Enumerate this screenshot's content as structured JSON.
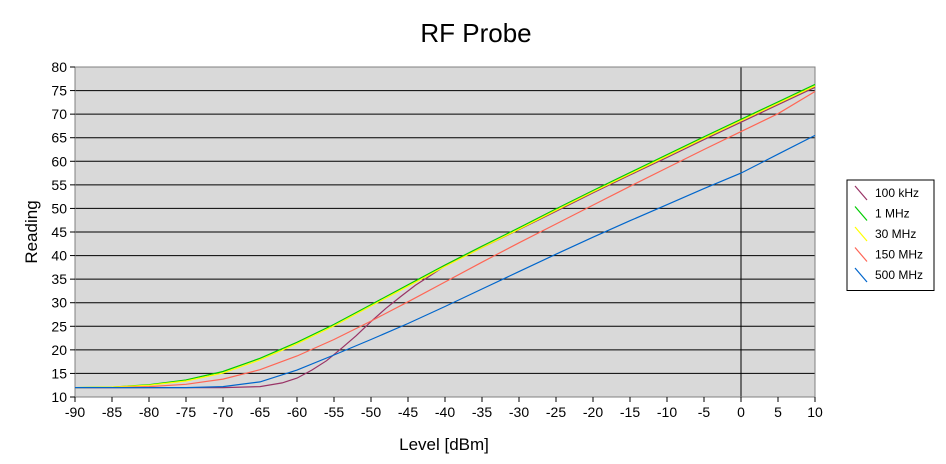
{
  "chart_data": {
    "type": "line",
    "title": "RF Probe",
    "xlabel": "Level [dBm]",
    "ylabel": "Reading",
    "xlim": [
      -90,
      10
    ],
    "ylim": [
      10,
      80
    ],
    "x_ticks": [
      -90,
      -85,
      -80,
      -75,
      -70,
      -65,
      -60,
      -55,
      -50,
      -45,
      -40,
      -35,
      -30,
      -25,
      -20,
      -15,
      -10,
      -5,
      0,
      5,
      10
    ],
    "y_ticks": [
      10,
      15,
      20,
      25,
      30,
      35,
      40,
      45,
      50,
      55,
      60,
      65,
      70,
      75,
      80
    ],
    "grid": "horizontal",
    "plot_background": "#d9d9d9",
    "legend_position": "right",
    "series": [
      {
        "name": "100 kHz",
        "color": "#993366",
        "x": [
          -90,
          -80,
          -70,
          -65,
          -62,
          -60,
          -58,
          -56,
          -54,
          -52,
          -50,
          -48,
          -46,
          -44,
          -42,
          -40,
          -35,
          -30,
          -25,
          -20,
          -15,
          -10,
          -5,
          0,
          5,
          10
        ],
        "y": [
          12,
          12,
          12,
          12.2,
          13,
          14,
          15.7,
          17.7,
          20.3,
          23,
          26,
          28.8,
          31.3,
          33.7,
          35.7,
          37.8,
          41.7,
          45.5,
          49.4,
          53.3,
          57.1,
          60.8,
          64.6,
          68.3,
          72,
          75.7
        ]
      },
      {
        "name": "1 MHz",
        "color": "#00cc00",
        "x": [
          -90,
          -85,
          -80,
          -75,
          -70,
          -65,
          -60,
          -55,
          -50,
          -45,
          -40,
          -35,
          -30,
          -25,
          -20,
          -15,
          -10,
          -5,
          0,
          5,
          10
        ],
        "y": [
          12,
          12.1,
          12.6,
          13.6,
          15.4,
          18.2,
          21.6,
          25.4,
          29.6,
          33.8,
          38,
          42,
          45.9,
          49.9,
          53.8,
          57.6,
          61.4,
          65.2,
          68.9,
          72.6,
          76.3
        ]
      },
      {
        "name": "30 MHz",
        "color": "#ffff00",
        "x": [
          -90,
          -85,
          -80,
          -75,
          -70,
          -65,
          -60,
          -55,
          -50,
          -45,
          -40,
          -35,
          -30,
          -25,
          -20,
          -15,
          -10,
          -5,
          0,
          5,
          10
        ],
        "y": [
          12,
          12.1,
          12.5,
          13.4,
          15.1,
          17.9,
          21.3,
          25.1,
          29.3,
          33.5,
          37.7,
          41.7,
          45.6,
          49.6,
          53.5,
          57.3,
          61.1,
          64.9,
          68.6,
          72.3,
          76
        ]
      },
      {
        "name": "150 MHz",
        "color": "#ff6655",
        "x": [
          -90,
          -85,
          -80,
          -75,
          -70,
          -65,
          -60,
          -55,
          -50,
          -45,
          -40,
          -35,
          -30,
          -25,
          -20,
          -15,
          -10,
          -5,
          0,
          5,
          10
        ],
        "y": [
          12,
          12,
          12.2,
          12.7,
          13.8,
          15.8,
          18.7,
          22.2,
          26.1,
          30.2,
          34.4,
          38.6,
          42.7,
          46.7,
          50.7,
          54.7,
          58.6,
          62.5,
          66.3,
          70.1,
          74.8
        ]
      },
      {
        "name": "500 MHz",
        "color": "#0066cc",
        "x": [
          -90,
          -85,
          -80,
          -75,
          -70,
          -65,
          -60,
          -55,
          -50,
          -45,
          -40,
          -35,
          -30,
          -25,
          -20,
          -15,
          -10,
          -5,
          0,
          5,
          10
        ],
        "y": [
          12,
          12,
          12,
          12,
          12.2,
          13.2,
          15.7,
          18.9,
          22.2,
          25.6,
          29.2,
          32.9,
          36.6,
          40.3,
          43.9,
          47.4,
          50.8,
          54.2,
          57.5,
          61.5,
          65.5
        ]
      }
    ]
  }
}
